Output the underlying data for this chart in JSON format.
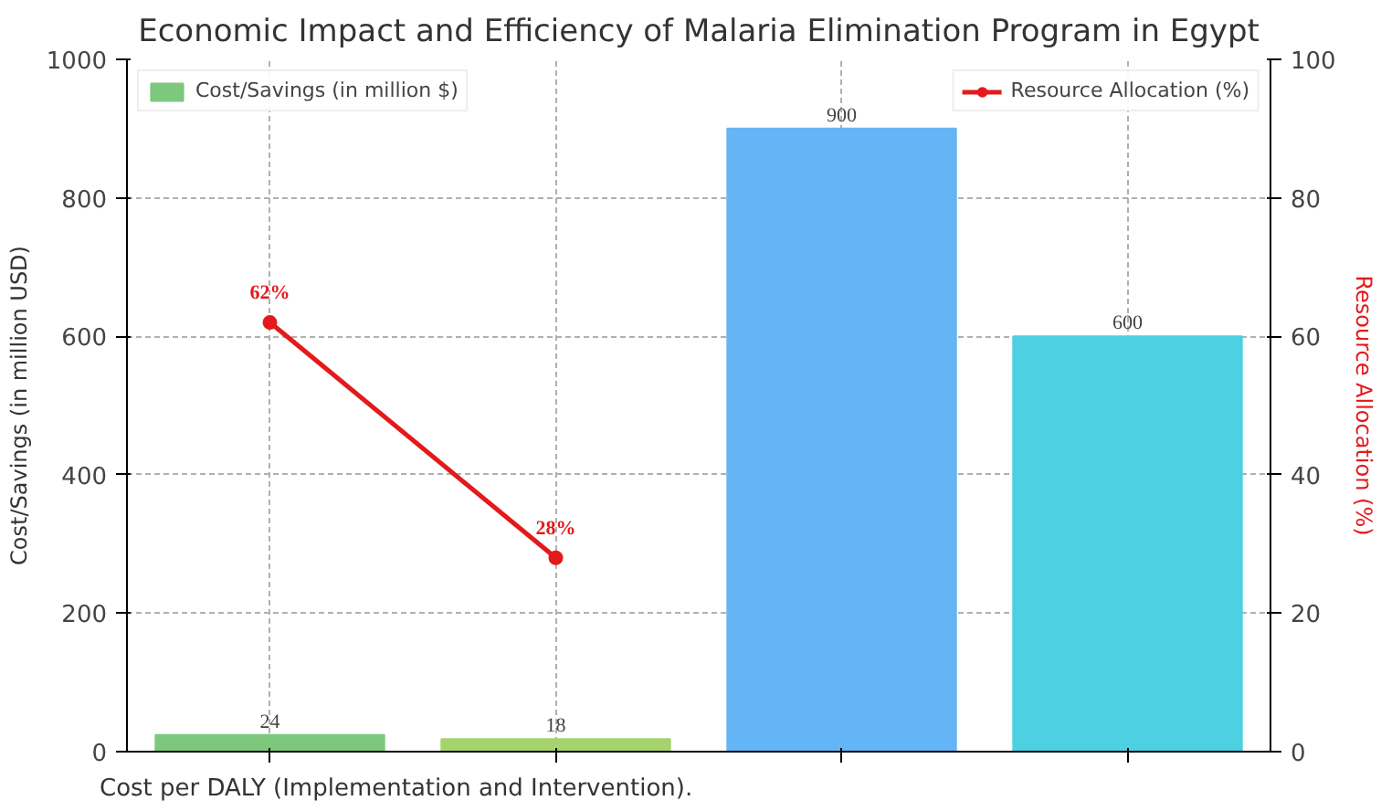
{
  "chart_data": {
    "type": "bar",
    "title": "Economic Impact and Efficiency of Malaria Elimination Program in Egypt",
    "ylabel": "Cost/Savings (in million USD)",
    "y2label": "Resource Allocation (%)",
    "annotations": [
      "Cost per DALY (Implementation and Intervention)."
    ],
    "categories": [
      null,
      null,
      null,
      null
    ],
    "series": [
      {
        "name": "Cost/Savings (in million $)",
        "colors": [
          "#7dc87d",
          "#a5d36e",
          "#64b5f6",
          "#4dd0e1"
        ],
        "values": [
          24,
          18,
          900,
          600
        ],
        "value_labels": [
          "24",
          "18",
          "900",
          "600"
        ]
      },
      {
        "name": "Resource Allocation (%)",
        "type": "line",
        "axis": "y2",
        "color": "#e31a1c",
        "values": [
          62,
          28,
          null,
          null
        ],
        "value_labels": [
          "62%",
          "28%",
          null,
          null
        ]
      }
    ],
    "ylim": [
      0,
      1000
    ],
    "yticks": [
      0,
      200,
      400,
      600,
      800,
      1000
    ],
    "y2lim": [
      0,
      100
    ],
    "y2ticks": [
      0,
      20,
      40,
      60,
      80,
      100
    ],
    "grid": true,
    "legend": "top",
    "marker": "circle",
    "line_style": "solid"
  }
}
